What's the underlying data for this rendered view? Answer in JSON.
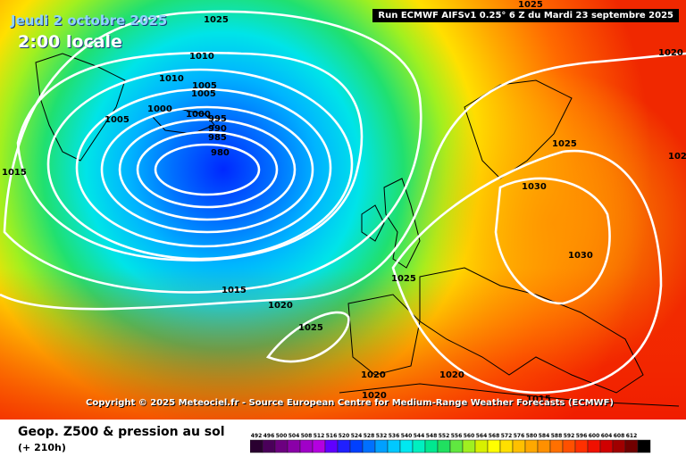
{
  "header": {
    "date": "Jeudi 2 octobre 2025",
    "local_time": "2:00 locale",
    "run_info": "Run ECMWF AIFSv1 0.25° 6 Z du Mardi 23 septembre 2025"
  },
  "copyright": "Copyright © 2025 Meteociel.fr - Source European Centre for Medium-Range Weather Forecasts (ECMWF)",
  "legend": {
    "title": "Geop. Z500 & pression au sol",
    "subtitle": "(+ 210h)",
    "scale": [
      {
        "value": "492",
        "color": "#2a0030"
      },
      {
        "value": "496",
        "color": "#4a005a"
      },
      {
        "value": "500",
        "color": "#6c0080"
      },
      {
        "value": "504",
        "color": "#8a00a8"
      },
      {
        "value": "508",
        "color": "#a000c8"
      },
      {
        "value": "512",
        "color": "#b400e0"
      },
      {
        "value": "516",
        "color": "#6000ff"
      },
      {
        "value": "520",
        "color": "#2020ff"
      },
      {
        "value": "524",
        "color": "#0040ff"
      },
      {
        "value": "528",
        "color": "#0070ff"
      },
      {
        "value": "532",
        "color": "#00a0ff"
      },
      {
        "value": "536",
        "color": "#00c8ff"
      },
      {
        "value": "540",
        "color": "#00e8f0"
      },
      {
        "value": "544",
        "color": "#00f0c0"
      },
      {
        "value": "548",
        "color": "#00e890"
      },
      {
        "value": "552",
        "color": "#20e060"
      },
      {
        "value": "556",
        "color": "#60e840"
      },
      {
        "value": "560",
        "color": "#a0f020"
      },
      {
        "value": "564",
        "color": "#d8f000"
      },
      {
        "value": "568",
        "color": "#ffff00"
      },
      {
        "value": "572",
        "color": "#ffe000"
      },
      {
        "value": "576",
        "color": "#ffc000"
      },
      {
        "value": "580",
        "color": "#ffa800"
      },
      {
        "value": "584",
        "color": "#ff9000"
      },
      {
        "value": "588",
        "color": "#ff7000"
      },
      {
        "value": "592",
        "color": "#ff5000"
      },
      {
        "value": "596",
        "color": "#ff3000"
      },
      {
        "value": "600",
        "color": "#f01000"
      },
      {
        "value": "604",
        "color": "#d00000"
      },
      {
        "value": "608",
        "color": "#a00000"
      },
      {
        "value": "612",
        "color": "#700000"
      },
      {
        "value": "",
        "color": "#000000"
      }
    ]
  },
  "isobar_labels": [
    "1025",
    "1010",
    "1010",
    "1005",
    "1005",
    "1005",
    "1000",
    "1000",
    "995",
    "990",
    "985",
    "980",
    "1015",
    "1015",
    "1020",
    "1025",
    "1020",
    "1020",
    "1020",
    "1025",
    "1025",
    "1030",
    "1030",
    "1015",
    "1020",
    "1020",
    "1025"
  ]
}
